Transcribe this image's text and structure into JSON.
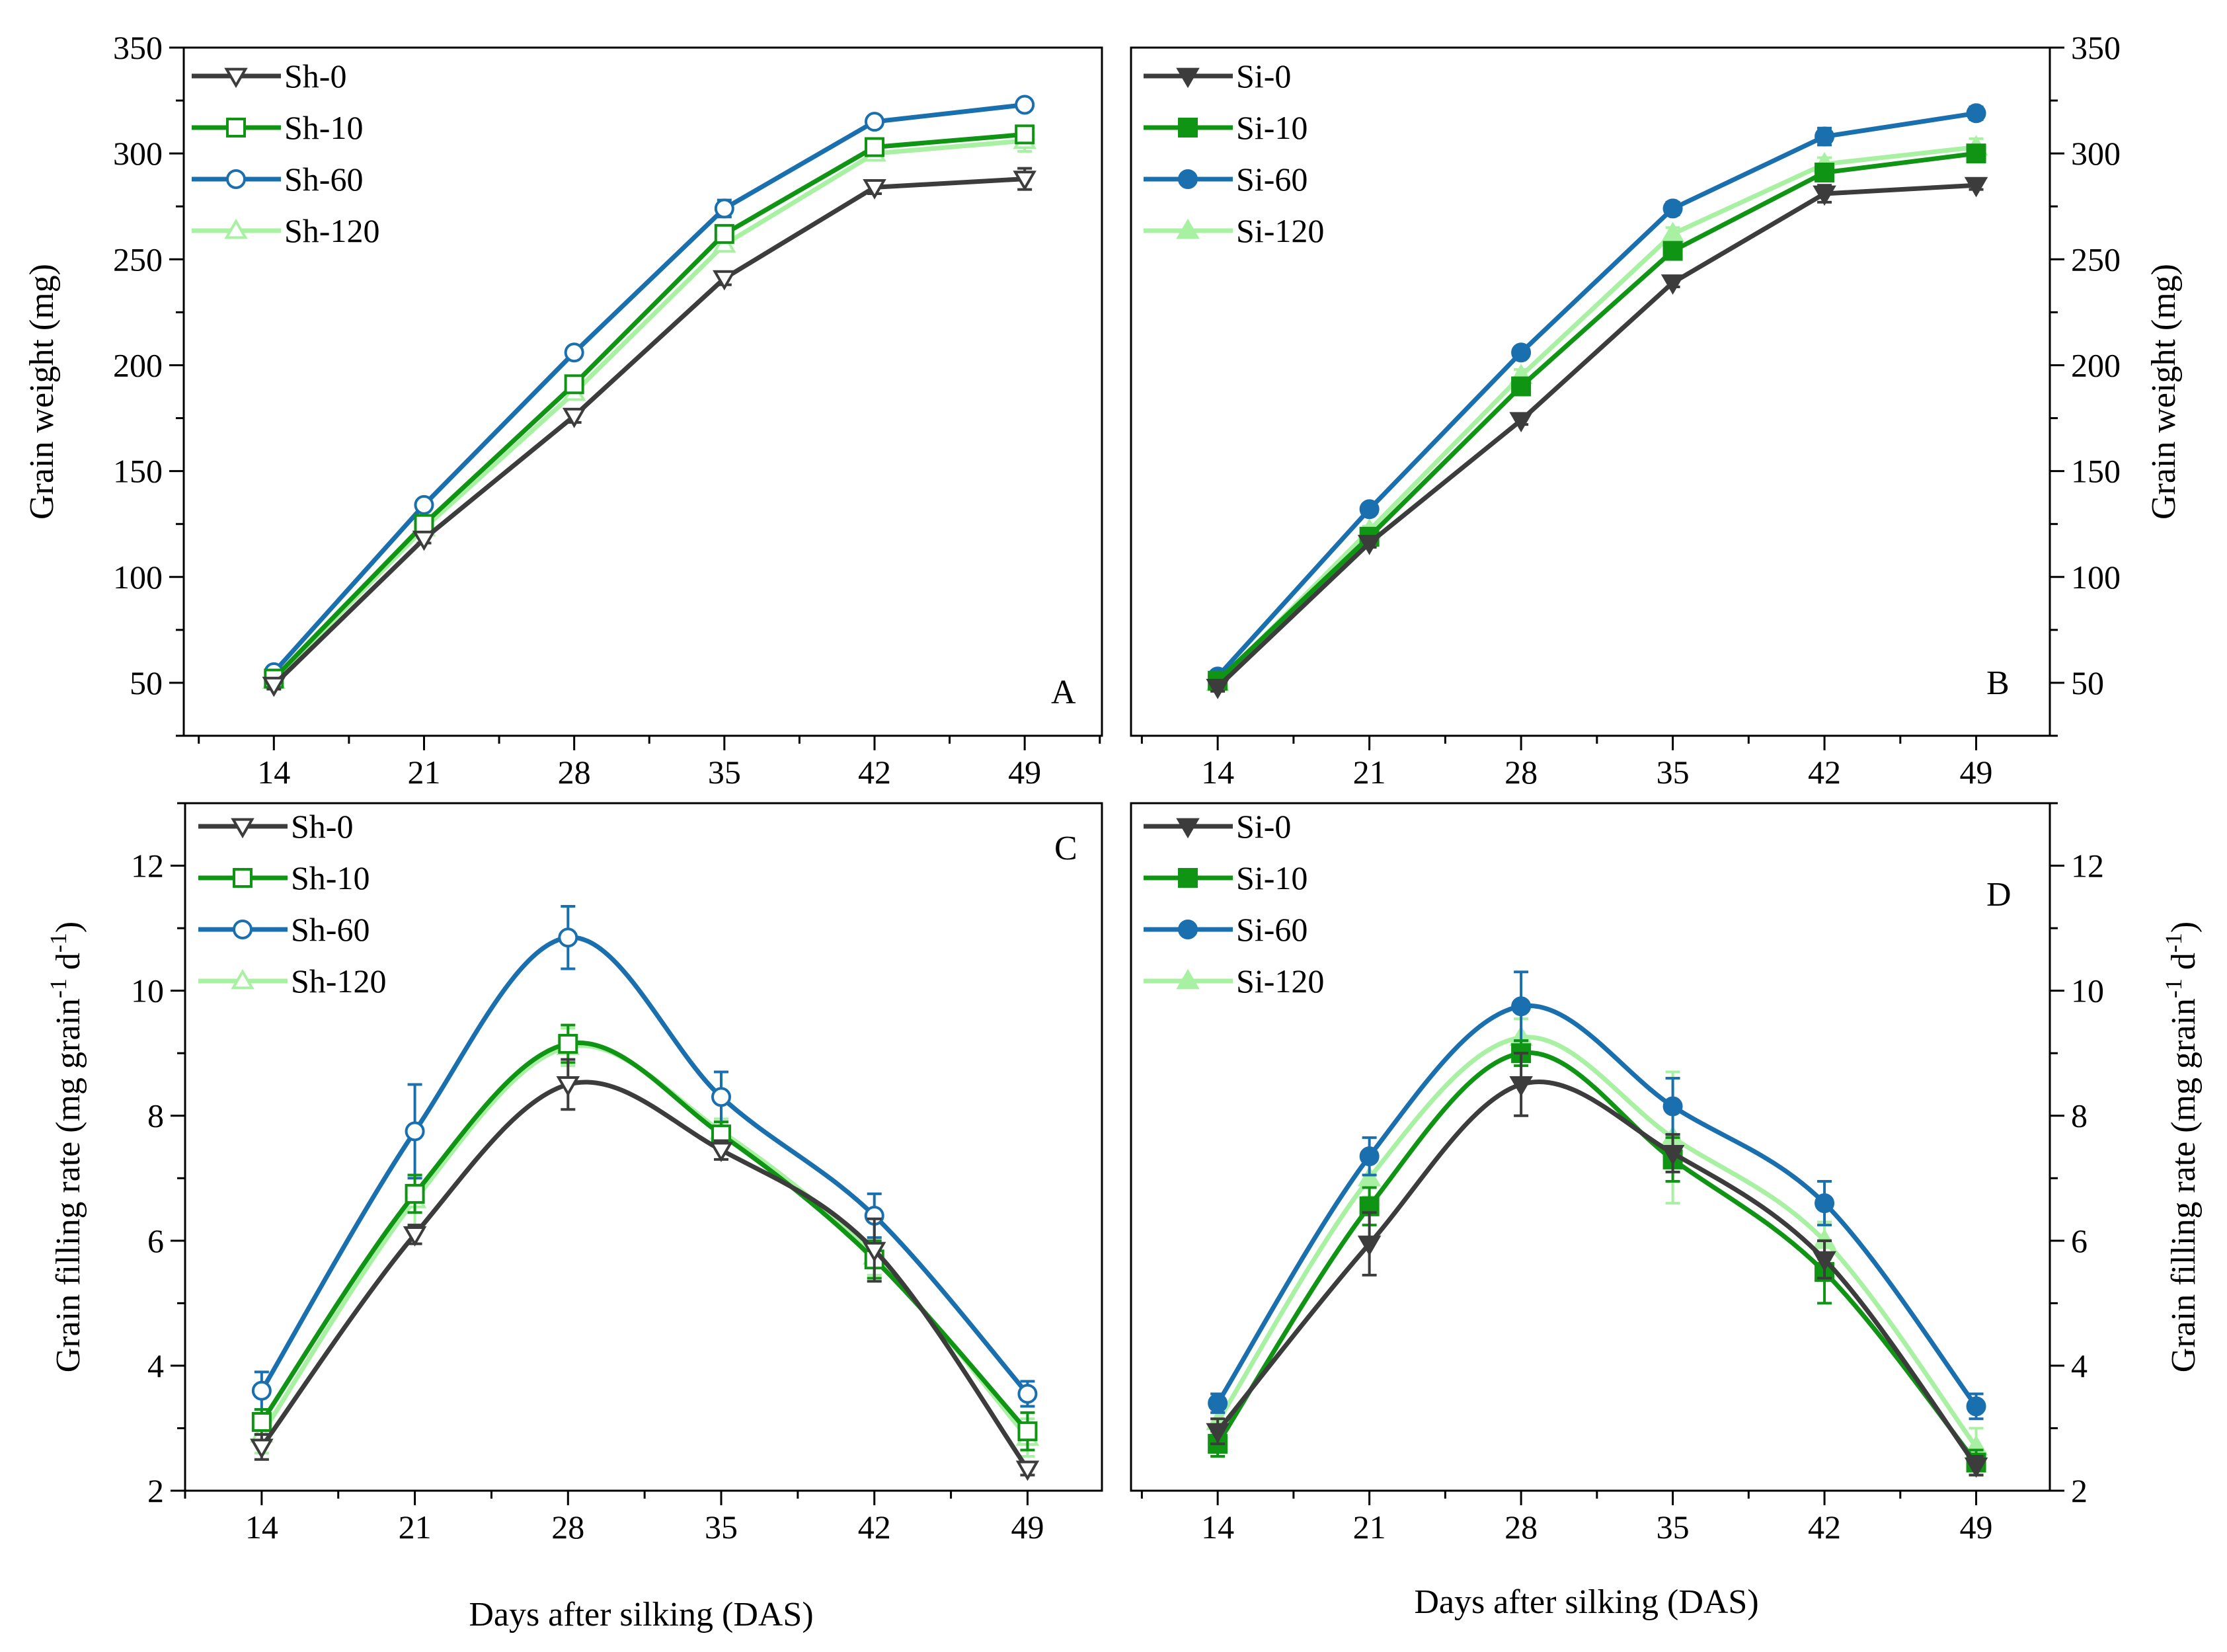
{
  "figure": {
    "shared_xlabel_left": "Days after silking (DAS)",
    "shared_xlabel_right": "Days after silking (DAS)"
  },
  "colors": {
    "black": "#3c3c3c",
    "green": "#0f9414",
    "blue": "#1a6fae",
    "lightgreen": "#a8f0a2"
  },
  "chart_data": [
    {
      "id": "A",
      "type": "line",
      "panel_letter": "A",
      "letter_position": "bottom-right",
      "title": "",
      "xlabel": "",
      "ylabel": "Grain weight (mg)",
      "yaxis_side": "left",
      "x": [
        14,
        21,
        28,
        35,
        42,
        49
      ],
      "xticks": [
        14,
        21,
        28,
        35,
        42,
        49
      ],
      "xlim": [
        9.8,
        52.6
      ],
      "ylim": [
        25,
        350
      ],
      "yticks": [
        50,
        100,
        150,
        200,
        250,
        300,
        350
      ],
      "legend_position": "top-left",
      "series": [
        {
          "name": "Sh-0",
          "color_key": "black",
          "marker": "triangle-down-open",
          "smooth": false,
          "values": [
            49,
            118,
            176,
            241,
            284,
            288
          ],
          "errors": [
            2,
            2,
            3,
            3,
            3,
            5
          ]
        },
        {
          "name": "Sh-10",
          "color_key": "green",
          "marker": "square-open",
          "smooth": false,
          "values": [
            52,
            125,
            191,
            262,
            303,
            309
          ],
          "errors": [
            2,
            2,
            3,
            4,
            4,
            3
          ]
        },
        {
          "name": "Sh-60",
          "color_key": "blue",
          "marker": "circle-open",
          "smooth": false,
          "values": [
            55,
            134,
            206,
            274,
            315,
            323
          ],
          "errors": [
            2,
            2,
            2,
            4,
            2,
            2
          ]
        },
        {
          "name": "Sh-120",
          "color_key": "lightgreen",
          "marker": "triangle-up-open",
          "smooth": false,
          "values": [
            51,
            123,
            187,
            257,
            300,
            306
          ],
          "errors": [
            2,
            2,
            3,
            3,
            3,
            5
          ]
        }
      ]
    },
    {
      "id": "B",
      "type": "line",
      "panel_letter": "B",
      "letter_position": "bottom-right",
      "title": "",
      "xlabel": "",
      "ylabel": "Grain weight (mg)",
      "yaxis_side": "right",
      "x": [
        14,
        21,
        28,
        35,
        42,
        49
      ],
      "xticks": [
        14,
        21,
        28,
        35,
        42,
        49
      ],
      "xlim": [
        10.0,
        52.4
      ],
      "ylim": [
        25,
        350
      ],
      "yticks": [
        50,
        100,
        150,
        200,
        250,
        300,
        350
      ],
      "legend_position": "top-left",
      "series": [
        {
          "name": "Si-0",
          "color_key": "black",
          "marker": "triangle-down-filled",
          "smooth": false,
          "values": [
            48,
            116,
            174,
            239,
            281,
            285
          ],
          "errors": [
            2,
            2,
            2,
            2,
            4,
            2
          ]
        },
        {
          "name": "Si-10",
          "color_key": "green",
          "marker": "square-filled",
          "smooth": false,
          "values": [
            51,
            119,
            190,
            254,
            291,
            300
          ],
          "errors": [
            2,
            2,
            2,
            3,
            4,
            3
          ]
        },
        {
          "name": "Si-60",
          "color_key": "blue",
          "marker": "circle-filled",
          "smooth": false,
          "values": [
            53,
            132,
            206,
            274,
            308,
            319
          ],
          "errors": [
            2,
            2,
            2,
            3,
            4,
            3
          ]
        },
        {
          "name": "Si-120",
          "color_key": "lightgreen",
          "marker": "triangle-up-filled",
          "smooth": false,
          "values": [
            50,
            122,
            195,
            262,
            295,
            303
          ],
          "errors": [
            2,
            2,
            3,
            3,
            3,
            4
          ]
        }
      ]
    },
    {
      "id": "C",
      "type": "line",
      "panel_letter": "C",
      "letter_position": "top-right",
      "title": "",
      "xlabel": "Days after silking (DAS)",
      "ylabel": "Grain filling rate (mg grain",
      "ylabel_sup1": "-1",
      "ylabel_mid": " d",
      "ylabel_sup2": "-1",
      "ylabel_end": ")",
      "yaxis_side": "left",
      "x": [
        14,
        21,
        28,
        35,
        42,
        49
      ],
      "xticks": [
        14,
        21,
        28,
        35,
        42,
        49
      ],
      "xlim": [
        10.5,
        52.4
      ],
      "ylim": [
        2,
        13
      ],
      "yticks": [
        2,
        4,
        6,
        8,
        10,
        12
      ],
      "legend_position": "top-left",
      "series": [
        {
          "name": "Sh-0",
          "color_key": "black",
          "marker": "triangle-down-open",
          "smooth": true,
          "values": [
            2.7,
            6.1,
            8.5,
            7.45,
            5.85,
            2.35
          ],
          "errors": [
            0.2,
            0.15,
            0.4,
            0.15,
            0.5,
            0.1
          ]
        },
        {
          "name": "Sh-10",
          "color_key": "green",
          "marker": "square-open",
          "smooth": true,
          "values": [
            3.1,
            6.75,
            9.15,
            7.7,
            5.7,
            2.95
          ],
          "errors": [
            0.2,
            0.3,
            0.3,
            0.2,
            0.3,
            0.3
          ]
        },
        {
          "name": "Sh-60",
          "color_key": "blue",
          "marker": "circle-open",
          "smooth": true,
          "values": [
            3.6,
            7.75,
            10.85,
            8.3,
            6.4,
            3.55
          ],
          "errors": [
            0.3,
            0.75,
            0.5,
            0.4,
            0.35,
            0.2
          ]
        },
        {
          "name": "Sh-120",
          "color_key": "lightgreen",
          "marker": "triangle-up-open",
          "smooth": true,
          "values": [
            2.9,
            6.65,
            9.1,
            7.75,
            5.75,
            2.85
          ],
          "errors": [
            0.3,
            0.4,
            0.3,
            0.2,
            0.3,
            0.3
          ]
        }
      ]
    },
    {
      "id": "D",
      "type": "line",
      "panel_letter": "D",
      "letter_position": "top-right",
      "title": "",
      "xlabel": "Days after silking (DAS)",
      "ylabel": "Grain filling rate (mg grain",
      "ylabel_sup1": "-1",
      "ylabel_mid": " d",
      "ylabel_sup2": "-1",
      "ylabel_end": ")",
      "yaxis_side": "right",
      "x": [
        14,
        21,
        28,
        35,
        42,
        49
      ],
      "xticks": [
        14,
        21,
        28,
        35,
        42,
        49
      ],
      "xlim": [
        10.0,
        52.4
      ],
      "ylim": [
        2,
        13
      ],
      "yticks": [
        2,
        4,
        6,
        8,
        10,
        12
      ],
      "legend_position": "top-left",
      "series": [
        {
          "name": "Si-0",
          "color_key": "black",
          "marker": "triangle-down-filled",
          "smooth": true,
          "values": [
            2.95,
            5.95,
            8.5,
            7.4,
            5.7,
            2.4
          ],
          "errors": [
            0.2,
            0.5,
            0.5,
            0.3,
            0.3,
            0.15
          ]
        },
        {
          "name": "Si-10",
          "color_key": "green",
          "marker": "square-filled",
          "smooth": true,
          "values": [
            2.75,
            6.55,
            9.0,
            7.3,
            5.5,
            2.45
          ],
          "errors": [
            0.2,
            0.3,
            0.2,
            0.35,
            0.5,
            0.2
          ]
        },
        {
          "name": "Si-60",
          "color_key": "blue",
          "marker": "circle-filled",
          "smooth": true,
          "values": [
            3.4,
            7.35,
            9.75,
            8.15,
            6.6,
            3.35
          ],
          "errors": [
            0.15,
            0.3,
            0.55,
            0.45,
            0.35,
            0.2
          ]
        },
        {
          "name": "Si-120",
          "color_key": "lightgreen",
          "marker": "triangle-up-filled",
          "smooth": true,
          "values": [
            3.1,
            7.0,
            9.25,
            7.65,
            6.0,
            2.7
          ],
          "errors": [
            0.2,
            0.3,
            0.3,
            1.05,
            0.3,
            0.3
          ]
        }
      ]
    }
  ]
}
